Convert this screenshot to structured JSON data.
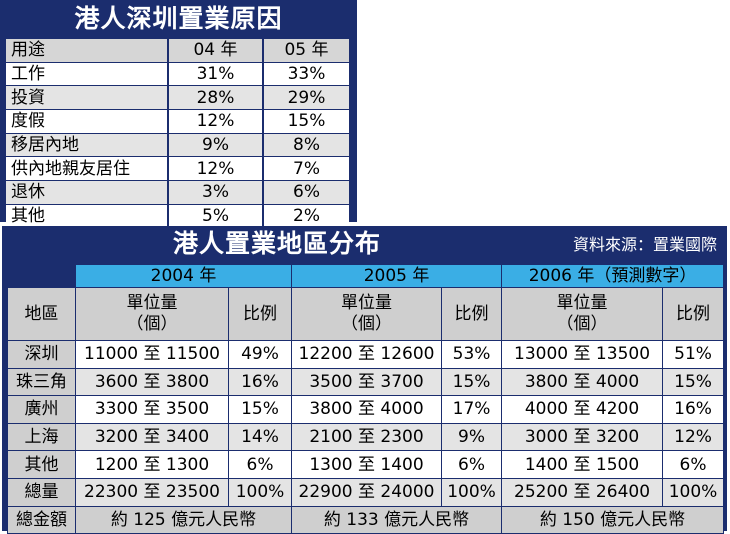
{
  "reasons": {
    "title": "港人深圳置業原因",
    "headers": [
      "用途",
      "04 年",
      "05 年"
    ],
    "rows": [
      [
        "工作",
        "31%",
        "33%"
      ],
      [
        "投資",
        "28%",
        "29%"
      ],
      [
        "度假",
        "12%",
        "15%"
      ],
      [
        "移居內地",
        "9%",
        "8%"
      ],
      [
        "供內地親友居住",
        "12%",
        "7%"
      ],
      [
        "退休",
        "3%",
        "6%"
      ],
      [
        "其他",
        "5%",
        "2%"
      ]
    ]
  },
  "distribution": {
    "title": "港人置業地區分布",
    "source": "資料來源：置業國際",
    "years": [
      "2004 年",
      "2005 年",
      "2006 年（預測數字）"
    ],
    "region_header": "地區",
    "units_header_line1": "單位量",
    "units_header_line2": "（個）",
    "ratio_header": "比例",
    "rows": [
      [
        "深圳",
        "11000 至 11500",
        "49%",
        "12200 至 12600",
        "53%",
        "13000 至 13500",
        "51%"
      ],
      [
        "珠三角",
        "3600 至 3800",
        "16%",
        "3500 至 3700",
        "15%",
        "3800 至 4000",
        "15%"
      ],
      [
        "廣州",
        "3300 至 3500",
        "15%",
        "3800 至 4000",
        "17%",
        "4000 至 4200",
        "16%"
      ],
      [
        "上海",
        "3200 至 3400",
        "14%",
        "2100 至 2300",
        "9%",
        "3000 至 3200",
        "12%"
      ],
      [
        "其他",
        "1200 至 1300",
        "6%",
        "1300 至 1400",
        "6%",
        "1400 至 1500",
        "6%"
      ],
      [
        "總量",
        "22300 至 23500",
        "100%",
        "22900 至 24000",
        "100%",
        "25200 至 26400",
        "100%"
      ]
    ],
    "total_label": "總金額",
    "totals": [
      "約 125 億元人民幣",
      "約 133 億元人民幣",
      "約 150 億元人民幣"
    ]
  }
}
